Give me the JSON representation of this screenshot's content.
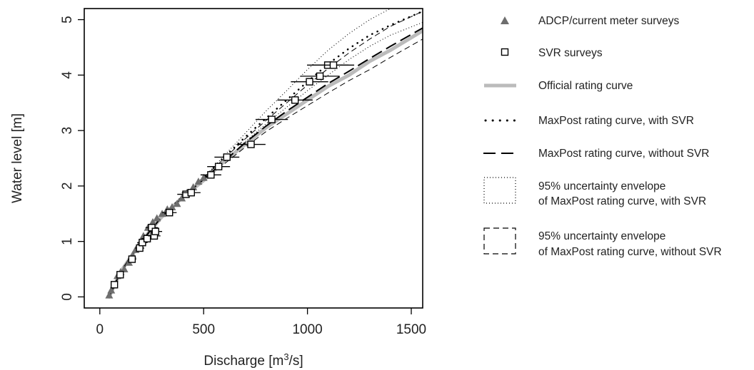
{
  "chart_data": {
    "type": "scatter",
    "xlabel": "Discharge [m",
    "xlabel_sup": "3",
    "xlabel_end": "/s]",
    "ylabel": "Water level [m]",
    "xlim": [
      -75,
      1555
    ],
    "ylim": [
      -0.2,
      5.2
    ],
    "xticks": [
      0,
      500,
      1000,
      1500
    ],
    "yticks": [
      0,
      1,
      2,
      3,
      4,
      5
    ],
    "xtick_labels": [
      "0",
      "500",
      "1000",
      "1500"
    ],
    "ytick_labels": [
      "0",
      "1",
      "2",
      "3",
      "4",
      "5"
    ],
    "grid": false,
    "legend_placement": "right",
    "legend": [
      {
        "key": "adcp",
        "label": "ADCP/current meter surveys"
      },
      {
        "key": "svr",
        "label": "SVR surveys"
      },
      {
        "key": "official",
        "label": "Official rating curve"
      },
      {
        "key": "maxpost_svr",
        "label": "MaxPost rating curve, with SVR"
      },
      {
        "key": "maxpost_nosvr",
        "label": "MaxPost rating curve, without SVR"
      },
      {
        "key": "env_svr",
        "label": "95% uncertainty envelope",
        "label2": "of MaxPost rating curve, with SVR"
      },
      {
        "key": "env_nosvr",
        "label": "95% uncertainty envelope",
        "label2": "of MaxPost rating curve, without SVR"
      }
    ],
    "colors": {
      "adcp": "#6e6e6e",
      "official": "#bbbbbb",
      "line": "#000000",
      "frame": "#000000"
    },
    "series": [
      {
        "name": "ADCP/current meter surveys",
        "marker": "triangle",
        "points": [
          [
            45,
            0.03
          ],
          [
            55,
            0.12
          ],
          [
            68,
            0.22
          ],
          [
            85,
            0.38
          ],
          [
            100,
            0.45
          ],
          [
            118,
            0.5
          ],
          [
            140,
            0.62
          ],
          [
            158,
            0.75
          ],
          [
            172,
            0.85
          ],
          [
            190,
            0.95
          ],
          [
            210,
            1.1
          ],
          [
            232,
            1.25
          ],
          [
            255,
            1.35
          ],
          [
            275,
            1.42
          ],
          [
            300,
            1.5
          ],
          [
            325,
            1.58
          ],
          [
            348,
            1.62
          ],
          [
            372,
            1.68
          ],
          [
            395,
            1.78
          ],
          [
            420,
            1.88
          ],
          [
            450,
            1.98
          ],
          [
            475,
            2.08
          ],
          [
            500,
            2.15
          ]
        ]
      },
      {
        "name": "SVR surveys",
        "marker": "open-square",
        "points": [
          {
            "x": 70,
            "y": 0.22,
            "xerr": 10
          },
          {
            "x": 98,
            "y": 0.4,
            "xerr": 15
          },
          {
            "x": 155,
            "y": 0.68,
            "xerr": 20
          },
          {
            "x": 192,
            "y": 0.88,
            "xerr": 22
          },
          {
            "x": 205,
            "y": 0.98,
            "xerr": 25
          },
          {
            "x": 228,
            "y": 1.05,
            "xerr": 28
          },
          {
            "x": 250,
            "y": 1.25,
            "xerr": 30
          },
          {
            "x": 262,
            "y": 1.1,
            "xerr": 30
          },
          {
            "x": 268,
            "y": 1.18,
            "xerr": 32
          },
          {
            "x": 335,
            "y": 1.52,
            "xerr": 35
          },
          {
            "x": 415,
            "y": 1.85,
            "xerr": 42
          },
          {
            "x": 440,
            "y": 1.88,
            "xerr": 45
          },
          {
            "x": 535,
            "y": 2.2,
            "xerr": 50
          },
          {
            "x": 572,
            "y": 2.35,
            "xerr": 55
          },
          {
            "x": 612,
            "y": 2.52,
            "xerr": 60
          },
          {
            "x": 728,
            "y": 2.75,
            "xerr": 70
          },
          {
            "x": 828,
            "y": 3.2,
            "xerr": 78
          },
          {
            "x": 940,
            "y": 3.55,
            "xerr": 85
          },
          {
            "x": 1010,
            "y": 3.88,
            "xerr": 90
          },
          {
            "x": 1060,
            "y": 3.98,
            "xerr": 95
          },
          {
            "x": 1098,
            "y": 4.18,
            "xerr": 100
          },
          {
            "x": 1125,
            "y": 4.18,
            "xerr": 100
          }
        ]
      },
      {
        "name": "Official rating curve",
        "line": "thick-grey",
        "points": [
          [
            45,
            0
          ],
          [
            100,
            0.45
          ],
          [
            200,
            1.0
          ],
          [
            300,
            1.45
          ],
          [
            400,
            1.8
          ],
          [
            500,
            2.1
          ],
          [
            600,
            2.45
          ],
          [
            700,
            2.75
          ],
          [
            800,
            3.05
          ],
          [
            900,
            3.3
          ],
          [
            1000,
            3.55
          ],
          [
            1100,
            3.8
          ],
          [
            1200,
            4.0
          ],
          [
            1300,
            4.25
          ],
          [
            1400,
            4.45
          ],
          [
            1555,
            4.8
          ]
        ]
      },
      {
        "name": "MaxPost rating curve, with SVR",
        "line": "dotted",
        "points": [
          [
            45,
            0
          ],
          [
            100,
            0.45
          ],
          [
            200,
            1.0
          ],
          [
            300,
            1.45
          ],
          [
            400,
            1.82
          ],
          [
            500,
            2.15
          ],
          [
            600,
            2.52
          ],
          [
            700,
            2.88
          ],
          [
            800,
            3.22
          ],
          [
            900,
            3.55
          ],
          [
            1000,
            3.88
          ],
          [
            1100,
            4.2
          ],
          [
            1200,
            4.48
          ],
          [
            1300,
            4.72
          ],
          [
            1400,
            4.9
          ],
          [
            1555,
            5.15
          ]
        ]
      },
      {
        "name": "MaxPost rating curve, without SVR",
        "line": "dashed",
        "points": [
          [
            45,
            0
          ],
          [
            100,
            0.45
          ],
          [
            200,
            1.0
          ],
          [
            300,
            1.45
          ],
          [
            400,
            1.8
          ],
          [
            500,
            2.12
          ],
          [
            600,
            2.45
          ],
          [
            700,
            2.78
          ],
          [
            800,
            3.08
          ],
          [
            900,
            3.35
          ],
          [
            1000,
            3.6
          ],
          [
            1100,
            3.85
          ],
          [
            1200,
            4.07
          ],
          [
            1300,
            4.3
          ],
          [
            1400,
            4.52
          ],
          [
            1555,
            4.85
          ]
        ]
      },
      {
        "name": "95% uncertainty envelope of MaxPost rating curve, with SVR",
        "line": "fine-dotted",
        "upper": [
          [
            500,
            2.15
          ],
          [
            600,
            2.55
          ],
          [
            700,
            2.95
          ],
          [
            800,
            3.35
          ],
          [
            900,
            3.72
          ],
          [
            1000,
            4.1
          ],
          [
            1100,
            4.45
          ],
          [
            1200,
            4.75
          ],
          [
            1300,
            5.0
          ],
          [
            1400,
            5.2
          ]
        ],
        "lower": [
          [
            500,
            2.1
          ],
          [
            600,
            2.45
          ],
          [
            700,
            2.8
          ],
          [
            800,
            3.12
          ],
          [
            900,
            3.42
          ],
          [
            1000,
            3.72
          ],
          [
            1100,
            4.0
          ],
          [
            1200,
            4.28
          ],
          [
            1300,
            4.52
          ],
          [
            1400,
            4.72
          ],
          [
            1555,
            4.95
          ]
        ]
      },
      {
        "name": "95% uncertainty envelope of MaxPost rating curve, without SVR",
        "line": "thin-dashed",
        "upper": [
          [
            500,
            2.15
          ],
          [
            600,
            2.5
          ],
          [
            700,
            2.85
          ],
          [
            800,
            3.18
          ],
          [
            900,
            3.5
          ],
          [
            1000,
            3.82
          ],
          [
            1100,
            4.12
          ],
          [
            1200,
            4.4
          ],
          [
            1300,
            4.65
          ],
          [
            1400,
            4.88
          ],
          [
            1555,
            5.15
          ]
        ],
        "lower": [
          [
            500,
            2.08
          ],
          [
            600,
            2.4
          ],
          [
            700,
            2.7
          ],
          [
            800,
            2.98
          ],
          [
            900,
            3.22
          ],
          [
            1000,
            3.45
          ],
          [
            1100,
            3.68
          ],
          [
            1200,
            3.9
          ],
          [
            1300,
            4.1
          ],
          [
            1400,
            4.32
          ],
          [
            1555,
            4.65
          ]
        ]
      }
    ]
  }
}
